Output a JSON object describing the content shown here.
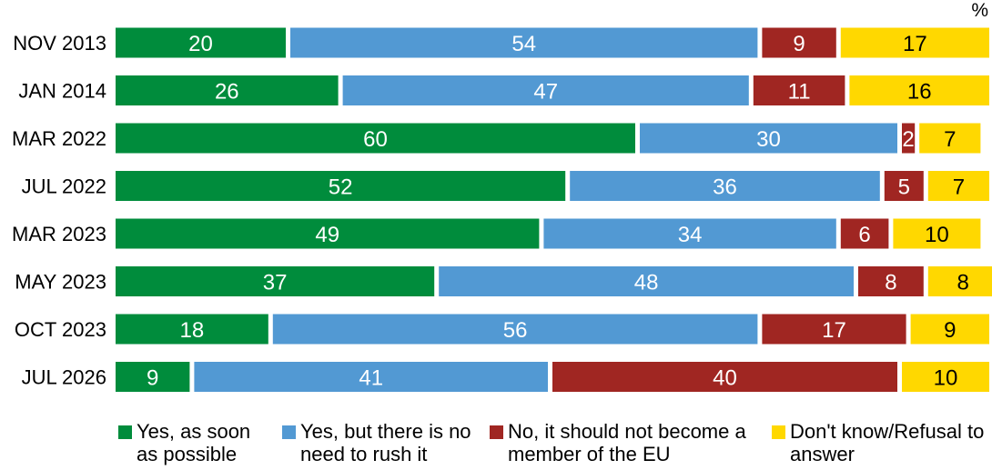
{
  "chart_data": {
    "type": "bar",
    "orientation": "horizontal",
    "stacked": true,
    "unit_label": "%",
    "categories": [
      "NOV 2013",
      "JAN 2014",
      "MAR 2022",
      "JUL 2022",
      "MAR 2023",
      "MAY 2023",
      "OCT 2023",
      "JUL 2026"
    ],
    "series": [
      {
        "name": "Yes, as soon as possible",
        "color": "#008c3c",
        "values": [
          20,
          26,
          60,
          52,
          49,
          37,
          18,
          9
        ]
      },
      {
        "name": "Yes, but there is no need to rush it",
        "color": "#5299d3",
        "values": [
          54,
          47,
          30,
          36,
          34,
          48,
          56,
          41
        ]
      },
      {
        "name": "No, it should not become a member of the EU",
        "color": "#a02622",
        "values": [
          9,
          11,
          2,
          5,
          6,
          8,
          17,
          40
        ]
      },
      {
        "name": "Don't know/Refusal to answer",
        "color": "#ffd800",
        "values": [
          17,
          16,
          7,
          7,
          10,
          8,
          9,
          10
        ]
      }
    ],
    "label_colors": [
      "#ffffff",
      "#ffffff",
      "#ffffff",
      "#000000"
    ],
    "xlim": [
      0,
      100
    ],
    "grid": false,
    "legend_position": "bottom"
  }
}
